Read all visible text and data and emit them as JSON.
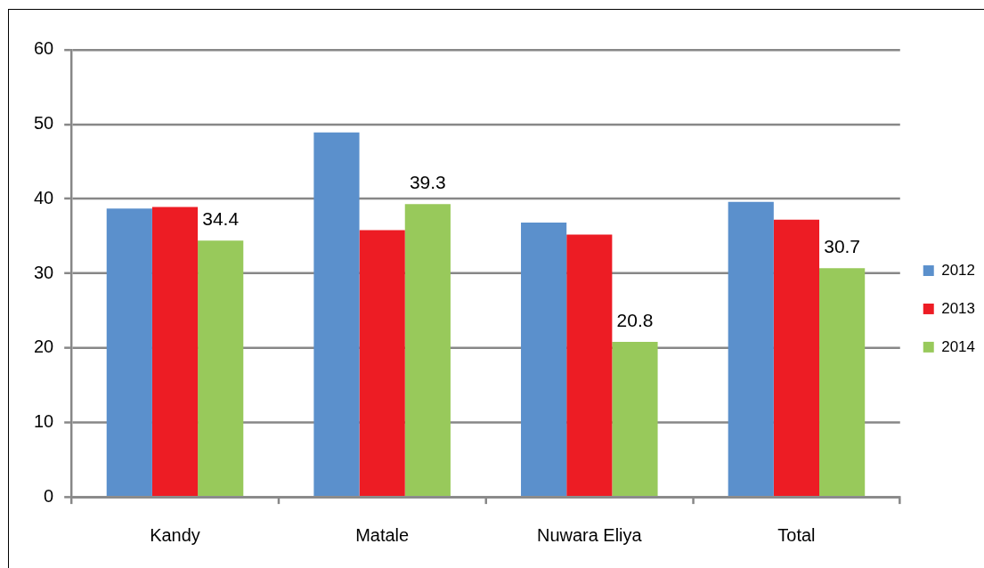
{
  "chart_data": {
    "type": "bar",
    "categories": [
      "Kandy",
      "Matale",
      "Nuwara Eliya",
      "Total"
    ],
    "series": [
      {
        "name": "2012",
        "color": "#5b90cc",
        "values": [
          38.7,
          48.9,
          36.8,
          39.6
        ]
      },
      {
        "name": "2013",
        "color": "#ed1c24",
        "values": [
          38.9,
          35.8,
          35.2,
          37.2
        ]
      },
      {
        "name": "2014",
        "color": "#98c95b",
        "values": [
          34.4,
          39.3,
          20.8,
          30.7
        ],
        "value_labels": [
          "34.4",
          "39.3",
          "20.8",
          "30.7"
        ]
      }
    ],
    "ylim": [
      0,
      60
    ],
    "yticks": [
      0,
      10,
      20,
      30,
      40,
      50,
      60
    ],
    "grid": "y",
    "legend": "right"
  }
}
